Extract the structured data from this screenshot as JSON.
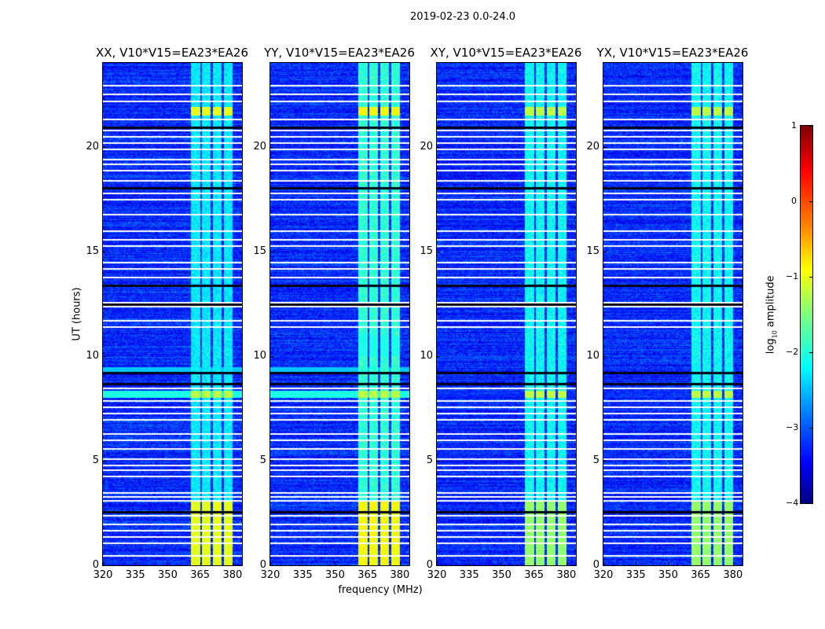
{
  "chart_data": {
    "type": "heatmap",
    "title": "2019-02-23 0.0-24.0",
    "xlabel": "frequency (MHz)",
    "ylabel": "UT (hours)",
    "xlim": [
      320,
      384.4
    ],
    "ylim": [
      0,
      24
    ],
    "xticks": [
      "320",
      "335",
      "350",
      "365",
      "380"
    ],
    "yticks": [
      "0",
      "5",
      "10",
      "15",
      "20"
    ],
    "colorbar": {
      "label": "log10 amplitude",
      "label_main": "log",
      "label_sub": "10",
      "label_rest": " amplitude",
      "range": [
        -4,
        1
      ],
      "ticks": [
        "1",
        "0",
        "−1",
        "−2",
        "−3",
        "−4"
      ],
      "colormap": "jet"
    },
    "background_level": -3.2,
    "rfi_channel_blocks_mhz": [
      [
        360.7,
        365
      ],
      [
        365.8,
        369.8
      ],
      [
        370.9,
        374.9
      ],
      [
        376,
        380
      ]
    ],
    "flagged_rows_hours": [
      22.95,
      22.55,
      22.2,
      21.35,
      20.8,
      20.5,
      20.2,
      19.9,
      19.4,
      19.2,
      18.9,
      18.4,
      17.8,
      17.5,
      16.8,
      16.0,
      15.6,
      15.3,
      14.5,
      14.2,
      13.8,
      12.6,
      12.4,
      11.7,
      11.4,
      8.5,
      7.9,
      7.6,
      7.3,
      7.0,
      6.3,
      6.0,
      5.6,
      5.1,
      4.8,
      4.6,
      4.3,
      3.5,
      3.3,
      3.1,
      2.4,
      2.0,
      1.7,
      1.4,
      1.1,
      0.5
    ],
    "dark_rows_hours": [
      20.95,
      18.05,
      13.4,
      12.5,
      9.25,
      8.7,
      2.6
    ],
    "panels": [
      {
        "title": "XX, V10*V15=EA23*EA26",
        "rfi_level": -2.2,
        "burst_level": -1.0,
        "wideband_8h_level": -2.0
      },
      {
        "title": "YY, V10*V15=EA23*EA26",
        "rfi_level": -1.9,
        "burst_level": -0.9,
        "wideband_8h_level": -2.0
      },
      {
        "title": "XY, V10*V15=EA23*EA26",
        "rfi_level": -2.1,
        "burst_level": -1.2,
        "wideband_8h_level": -3.3
      },
      {
        "title": "YX, V10*V15=EA23*EA26",
        "rfi_level": -2.1,
        "burst_level": -1.2,
        "wideband_8h_level": -3.3
      }
    ]
  }
}
